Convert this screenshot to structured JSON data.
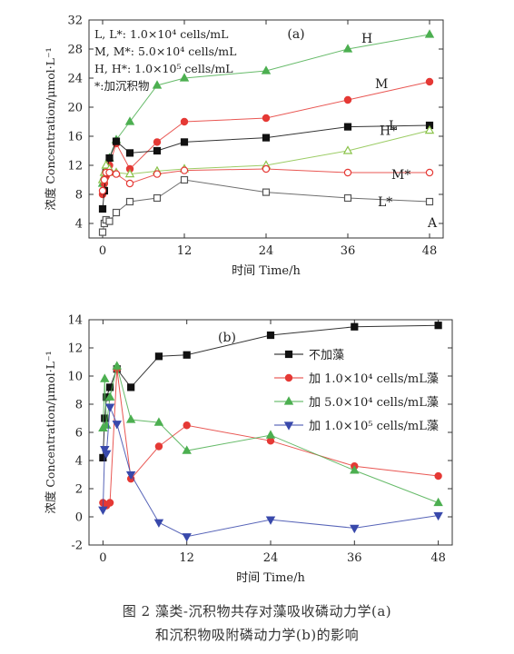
{
  "figure": {
    "caption_line1": "图 2   藻类-沉积物共存对藻吸收磷动力学(a)",
    "caption_line2": "和沉积物吸附磷动力学(b)的影响"
  },
  "chart_data": [
    {
      "type": "line",
      "title": "",
      "panel_label": "(a)",
      "corner_label": "A",
      "xlabel": "时间 Time/h",
      "ylabel": "浓度 Concentration/μmol·L⁻¹",
      "xlim": [
        -2,
        50
      ],
      "ylim": [
        2,
        32
      ],
      "xticks": [
        0,
        12,
        24,
        36,
        48
      ],
      "yticks": [
        4,
        8,
        12,
        16,
        20,
        24,
        28,
        32
      ],
      "legend_text": [
        "L, L*: 1.0×10⁴ cells/mL",
        "M, M*: 5.0×10⁴ cells/mL",
        "H, H*: 1.0×10⁵ cells/mL",
        "*:加沉积物"
      ],
      "series": [
        {
          "name": "H",
          "color": "#4caf50",
          "marker": "triangle",
          "filled": true,
          "x": [
            0,
            0.25,
            0.5,
            1,
            2,
            4,
            8,
            12,
            24,
            36,
            48
          ],
          "y": [
            9.5,
            10.5,
            11.5,
            13.0,
            15.5,
            18.0,
            23.0,
            24.0,
            25.0,
            28.0,
            30.0
          ]
        },
        {
          "name": "M",
          "color": "#e53935",
          "marker": "circle",
          "filled": true,
          "x": [
            0,
            0.25,
            0.5,
            1,
            2,
            4,
            8,
            12,
            24,
            36,
            48
          ],
          "y": [
            8.0,
            9.5,
            10.5,
            12.0,
            15.0,
            11.5,
            15.2,
            18.0,
            18.5,
            21.0,
            23.5
          ]
        },
        {
          "name": "L",
          "color": "#111111",
          "marker": "square",
          "filled": true,
          "x": [
            0,
            0.25,
            0.5,
            1,
            2,
            4,
            8,
            12,
            24,
            36,
            48
          ],
          "y": [
            6.0,
            8.5,
            11.0,
            13.0,
            15.3,
            13.7,
            14.0,
            15.2,
            15.8,
            17.3,
            17.5
          ]
        },
        {
          "name": "H*",
          "color": "#8bc34a",
          "marker": "triangle",
          "filled": false,
          "x": [
            0,
            0.25,
            0.5,
            1,
            2,
            4,
            8,
            12,
            24,
            36,
            48
          ],
          "y": [
            10.0,
            11.0,
            12.0,
            11.5,
            11.0,
            10.8,
            11.2,
            11.5,
            12.0,
            14.0,
            16.8
          ]
        },
        {
          "name": "M*",
          "color": "#e53935",
          "marker": "circle",
          "filled": false,
          "x": [
            0,
            0.25,
            0.5,
            1,
            2,
            4,
            8,
            12,
            24,
            36,
            48
          ],
          "y": [
            8.5,
            10.0,
            11.0,
            11.0,
            10.8,
            9.5,
            10.8,
            11.3,
            11.5,
            11.0,
            11.0
          ]
        },
        {
          "name": "L*",
          "color": "#555555",
          "marker": "square",
          "filled": false,
          "x": [
            0,
            0.25,
            0.5,
            1,
            2,
            4,
            8,
            12,
            24,
            36,
            48
          ],
          "y": [
            2.8,
            4.0,
            4.5,
            4.3,
            5.5,
            7.0,
            7.5,
            10.0,
            8.3,
            7.5,
            7.0
          ]
        }
      ]
    },
    {
      "type": "line",
      "title": "",
      "panel_label": "(b)",
      "xlabel": "时间 Time/h",
      "ylabel": "浓度 Concentration/μmol·L⁻¹",
      "xlim": [
        -2,
        50
      ],
      "ylim": [
        -2,
        14
      ],
      "xticks": [
        0,
        12,
        24,
        36,
        48
      ],
      "yticks": [
        -2,
        0,
        2,
        4,
        6,
        8,
        10,
        12,
        14
      ],
      "legend_placement": "right",
      "series": [
        {
          "name": "不加藻",
          "color": "#111111",
          "marker": "square",
          "filled": true,
          "x": [
            0,
            0.25,
            0.5,
            1,
            2,
            4,
            8,
            12,
            24,
            36,
            48
          ],
          "y": [
            4.2,
            7.0,
            8.5,
            9.2,
            10.5,
            9.2,
            11.4,
            11.5,
            12.9,
            13.5,
            13.6
          ]
        },
        {
          "name": "加 1.0×10⁴ cells/mL藻",
          "color": "#e53935",
          "marker": "circle",
          "filled": true,
          "x": [
            0,
            0.25,
            0.5,
            1,
            2,
            4,
            8,
            12,
            24,
            36,
            48
          ],
          "y": [
            1.0,
            0.9,
            0.8,
            1.0,
            10.5,
            2.7,
            5.0,
            6.5,
            5.4,
            3.6,
            2.9
          ]
        },
        {
          "name": "加 5.0×10⁴ cells/mL藻",
          "color": "#4caf50",
          "marker": "triangle",
          "filled": true,
          "x": [
            0,
            0.25,
            0.5,
            1,
            2,
            4,
            8,
            12,
            24,
            36,
            48
          ],
          "y": [
            6.3,
            9.8,
            6.5,
            8.5,
            10.7,
            6.9,
            6.7,
            4.7,
            5.8,
            3.3,
            1.0
          ]
        },
        {
          "name": "加 1.0×10⁵ cells/mL藻",
          "color": "#3949ab",
          "marker": "triangle-down",
          "filled": true,
          "x": [
            0,
            0.25,
            0.5,
            1,
            2,
            4,
            8,
            12,
            24,
            36,
            48
          ],
          "y": [
            0.5,
            4.8,
            4.5,
            7.8,
            6.6,
            3.0,
            -0.4,
            -1.4,
            -0.2,
            -0.8,
            0.1
          ]
        }
      ]
    }
  ]
}
